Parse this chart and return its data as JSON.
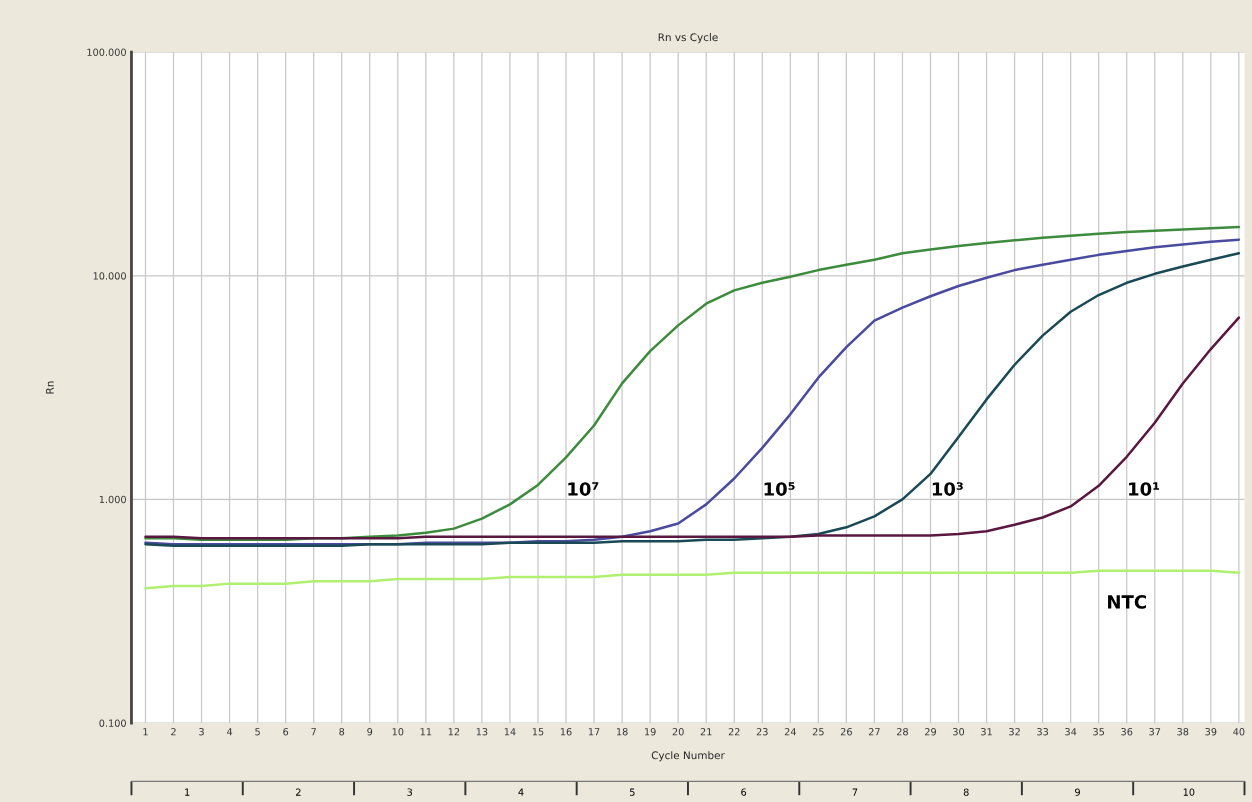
{
  "chart_data": {
    "type": "line",
    "title": "Rn vs Cycle",
    "xlabel": "Cycle Number",
    "ylabel": "Rn",
    "x": [
      1,
      2,
      3,
      4,
      5,
      6,
      7,
      8,
      9,
      10,
      11,
      12,
      13,
      14,
      15,
      16,
      17,
      18,
      19,
      20,
      21,
      22,
      23,
      24,
      25,
      26,
      27,
      28,
      29,
      30,
      31,
      32,
      33,
      34,
      35,
      36,
      37,
      38,
      39,
      40
    ],
    "series": [
      {
        "name": "10⁷",
        "color": "#3d8b3d",
        "values": [
          0.67,
          0.67,
          0.66,
          0.66,
          0.66,
          0.66,
          0.67,
          0.67,
          0.68,
          0.69,
          0.71,
          0.74,
          0.82,
          0.95,
          1.16,
          1.54,
          2.14,
          3.3,
          4.6,
          6.0,
          7.5,
          8.6,
          9.3,
          9.9,
          10.6,
          11.2,
          11.8,
          12.6,
          13.1,
          13.6,
          14.0,
          14.4,
          14.8,
          15.1,
          15.4,
          15.7,
          15.9,
          16.1,
          16.3,
          16.5
        ]
      },
      {
        "name": "10⁵",
        "color": "#4a4aa0",
        "values": [
          0.64,
          0.63,
          0.63,
          0.63,
          0.63,
          0.63,
          0.63,
          0.63,
          0.63,
          0.63,
          0.64,
          0.64,
          0.64,
          0.64,
          0.65,
          0.65,
          0.66,
          0.68,
          0.72,
          0.78,
          0.95,
          1.24,
          1.7,
          2.4,
          3.5,
          4.8,
          6.3,
          7.2,
          8.1,
          9.0,
          9.8,
          10.6,
          11.2,
          11.8,
          12.4,
          12.9,
          13.4,
          13.8,
          14.2,
          14.5
        ]
      },
      {
        "name": "10³",
        "color": "#1a4a55",
        "values": [
          0.63,
          0.62,
          0.62,
          0.62,
          0.62,
          0.62,
          0.62,
          0.62,
          0.63,
          0.63,
          0.63,
          0.63,
          0.63,
          0.64,
          0.64,
          0.64,
          0.64,
          0.65,
          0.65,
          0.65,
          0.66,
          0.66,
          0.67,
          0.68,
          0.7,
          0.75,
          0.84,
          1.0,
          1.3,
          1.9,
          2.8,
          4.0,
          5.4,
          6.9,
          8.2,
          9.3,
          10.2,
          11.0,
          11.8,
          12.6
        ]
      },
      {
        "name": "10¹",
        "color": "#5a1840",
        "values": [
          0.68,
          0.68,
          0.67,
          0.67,
          0.67,
          0.67,
          0.67,
          0.67,
          0.67,
          0.67,
          0.68,
          0.68,
          0.68,
          0.68,
          0.68,
          0.68,
          0.68,
          0.68,
          0.68,
          0.68,
          0.68,
          0.68,
          0.68,
          0.68,
          0.69,
          0.69,
          0.69,
          0.69,
          0.69,
          0.7,
          0.72,
          0.77,
          0.83,
          0.93,
          1.15,
          1.55,
          2.2,
          3.3,
          4.7,
          6.5
        ]
      },
      {
        "name": "NTC",
        "color": "#b0f070",
        "values": [
          0.4,
          0.41,
          0.41,
          0.42,
          0.42,
          0.42,
          0.43,
          0.43,
          0.43,
          0.44,
          0.44,
          0.44,
          0.44,
          0.45,
          0.45,
          0.45,
          0.45,
          0.46,
          0.46,
          0.46,
          0.46,
          0.47,
          0.47,
          0.47,
          0.47,
          0.47,
          0.47,
          0.47,
          0.47,
          0.47,
          0.47,
          0.47,
          0.47,
          0.47,
          0.48,
          0.48,
          0.48,
          0.48,
          0.48,
          0.47
        ]
      }
    ],
    "log": "y",
    "xlim": [
      0.5,
      40.2
    ],
    "ylim": [
      0.1,
      100
    ],
    "xticks": [
      1,
      2,
      3,
      4,
      5,
      6,
      7,
      8,
      9,
      10,
      11,
      12,
      13,
      14,
      15,
      16,
      17,
      18,
      19,
      20,
      21,
      22,
      23,
      24,
      25,
      26,
      27,
      28,
      29,
      30,
      31,
      32,
      33,
      34,
      35,
      36,
      37,
      38,
      39,
      40
    ],
    "yticks": [
      {
        "value": 0.1,
        "label": "0.100"
      },
      {
        "value": 1,
        "label": "1.000"
      },
      {
        "value": 10,
        "label": "10.000"
      },
      {
        "value": 100,
        "label": "100.000"
      }
    ],
    "x2lim": [
      0,
      10
    ],
    "x2ticks": [
      {
        "value": 0.5,
        "label": "1"
      },
      {
        "value": 1.5,
        "label": "2"
      },
      {
        "value": 2.5,
        "label": "3"
      },
      {
        "value": 3.5,
        "label": "4"
      },
      {
        "value": 4.5,
        "label": "5"
      },
      {
        "value": 5.5,
        "label": "6"
      },
      {
        "value": 6.5,
        "label": "7"
      },
      {
        "value": 7.5,
        "label": "8"
      },
      {
        "value": 8.5,
        "label": "9"
      },
      {
        "value": 9.5,
        "label": "10"
      }
    ],
    "grid": true,
    "line_style": "solid",
    "marker": "none"
  }
}
